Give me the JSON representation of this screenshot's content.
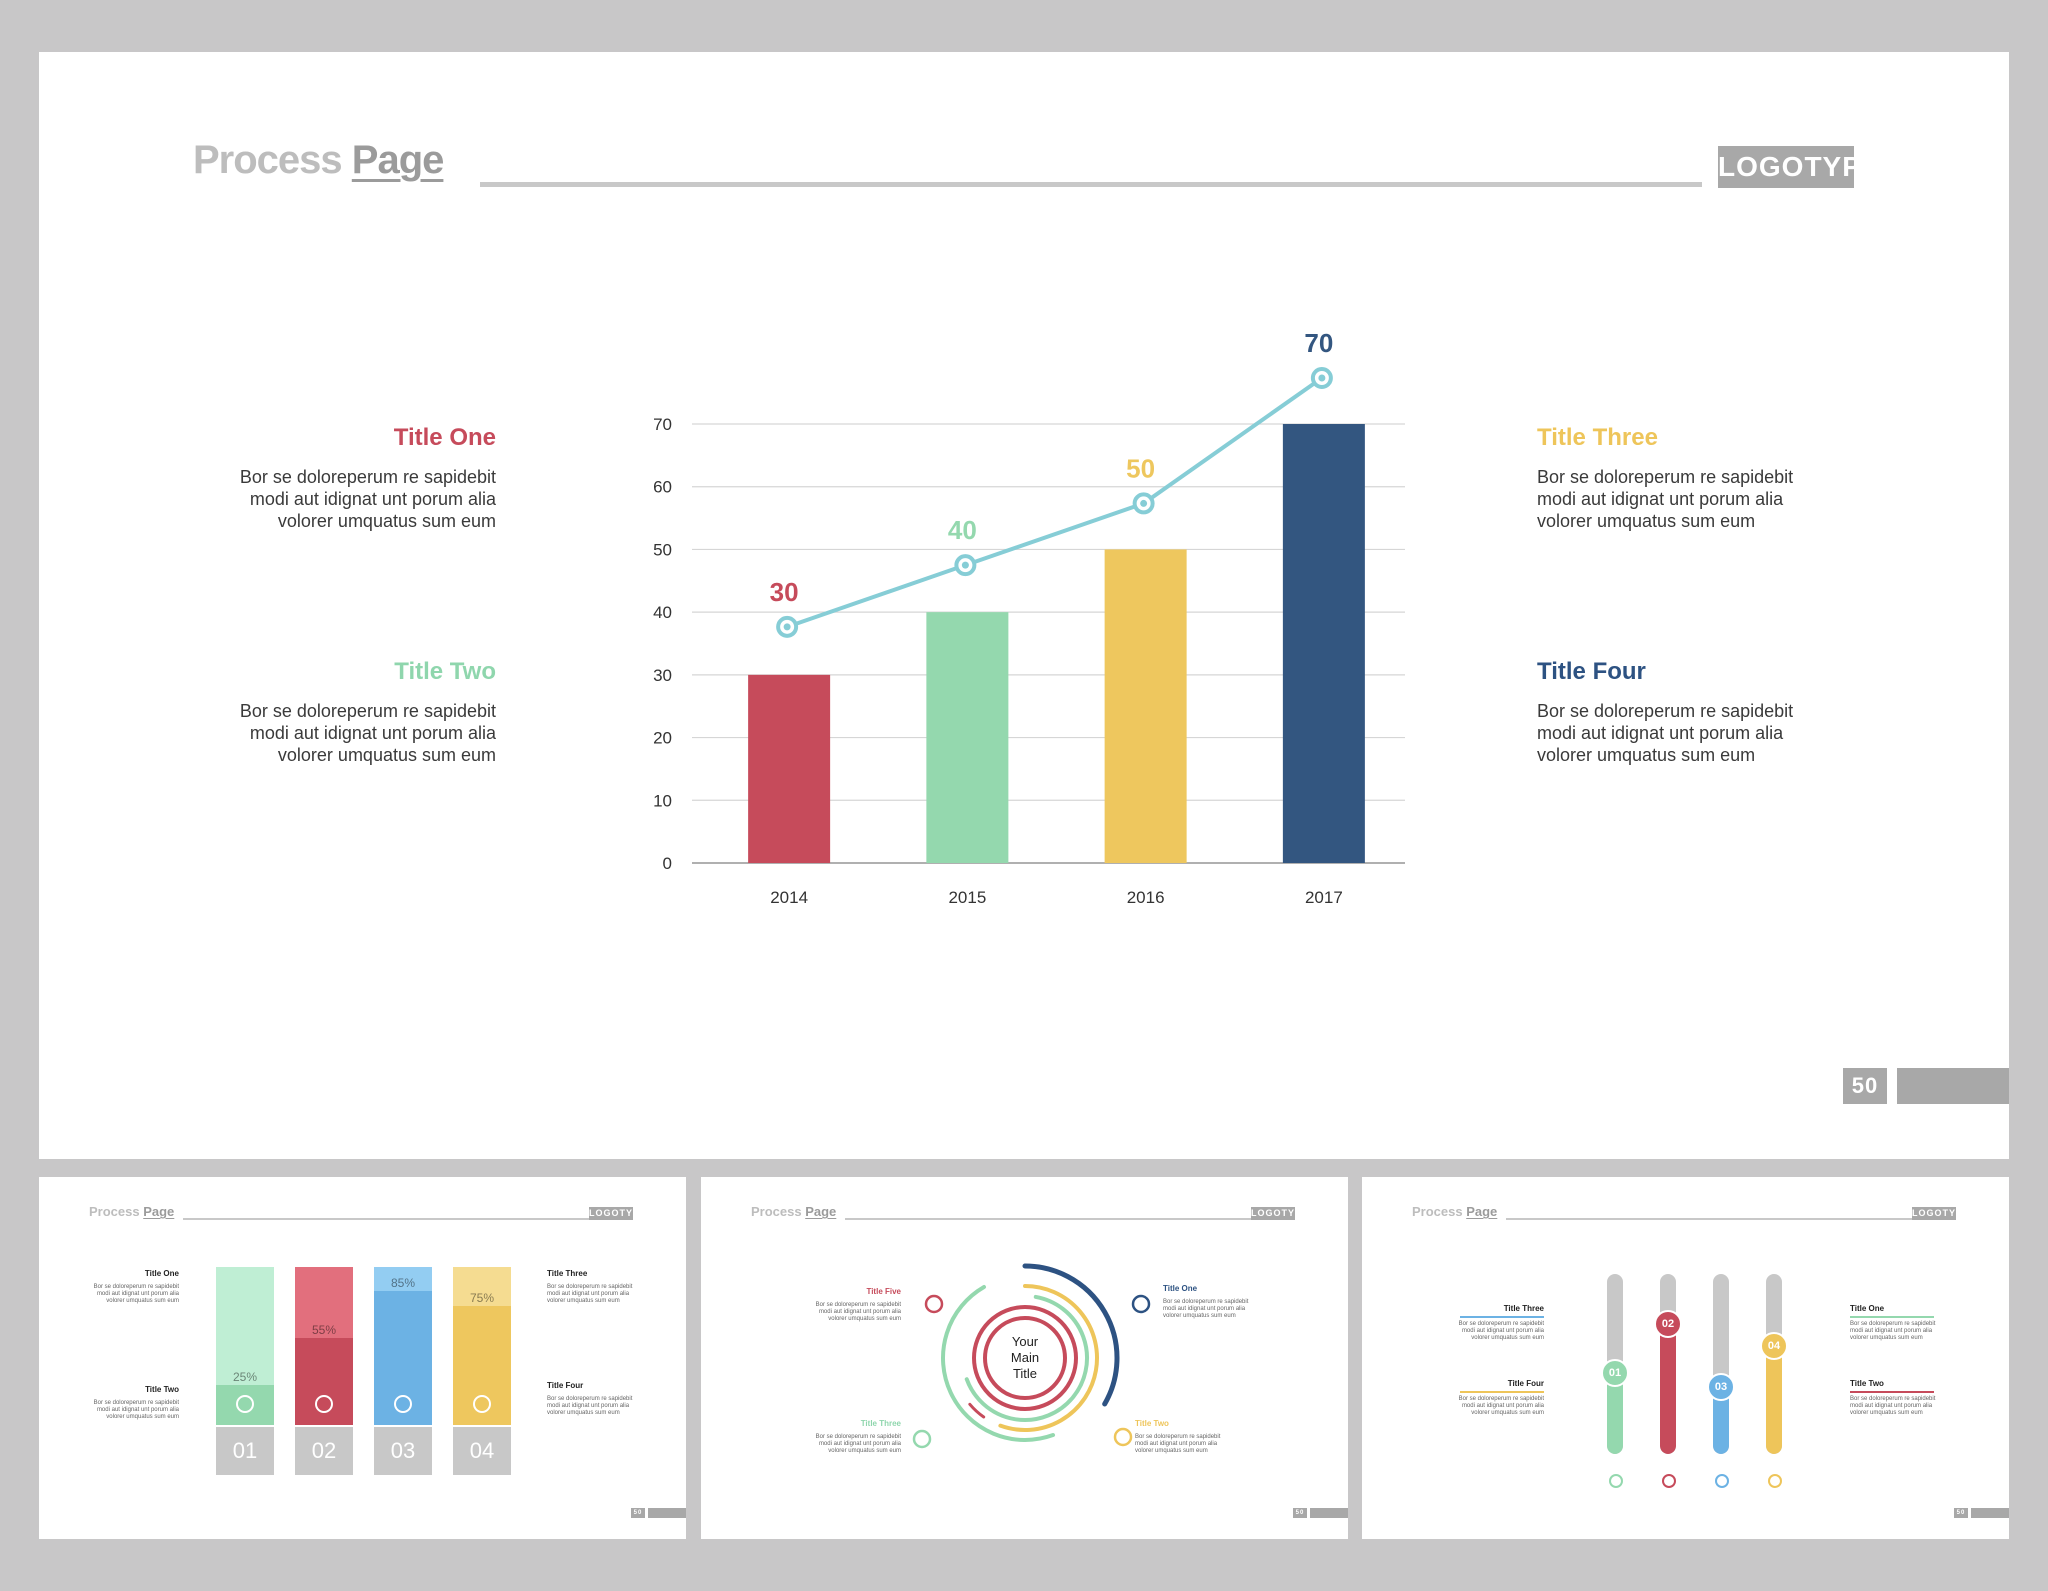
{
  "main_slide": {
    "header": {
      "title_light": "Process",
      "title_bold": "Page",
      "logo": "LOGOTYPE"
    },
    "page_number": "50",
    "blocks": [
      {
        "title": "Title One",
        "color": "#c64b5b",
        "lines": [
          "Bor se doloreperum re sapidebit",
          "modi aut idignat unt porum alia",
          "volorer umquatus sum eum"
        ]
      },
      {
        "title": "Title Two",
        "color": "#8fd6ad",
        "lines": [
          "Bor se doloreperum re sapidebit",
          "modi aut idignat unt porum alia",
          "volorer umquatus sum eum"
        ]
      },
      {
        "title": "Title Three",
        "color": "#eec55a",
        "lines": [
          "Bor se doloreperum re sapidebit",
          "modi aut idignat unt porum alia",
          "volorer umquatus sum eum"
        ]
      },
      {
        "title": "Title Four",
        "color": "#2d5282",
        "lines": [
          "Bor se doloreperum re sapidebit",
          "modi aut idignat unt porum alia",
          "volorer umquatus sum eum"
        ]
      }
    ]
  },
  "chart_data": {
    "type": "bar",
    "categories": [
      "2014",
      "2015",
      "2016",
      "2017"
    ],
    "values": [
      30,
      40,
      50,
      70
    ],
    "colors": [
      "#c64b5b",
      "#94d8ae",
      "#eec75e",
      "#335680"
    ],
    "data_labels": [
      "30",
      "40",
      "50",
      "70"
    ],
    "line_overlay_color": "#86cdd6",
    "y_ticks": [
      "0",
      "10",
      "20",
      "30",
      "40",
      "50",
      "60",
      "70"
    ],
    "ylim": [
      0,
      70
    ],
    "grid": true
  },
  "thumb1": {
    "header": {
      "title_light": "Process",
      "title_bold": "Page",
      "logo": "LOGOTYPE"
    },
    "page_number": "50",
    "left": [
      {
        "title": "Title One",
        "lines": [
          "Bor se doloreperum re sapidebit",
          "modi aut idignat unt porum alia",
          "volorer umquatus sum eum"
        ]
      },
      {
        "title": "Title Two",
        "lines": [
          "Bor se doloreperum re sapidebit",
          "modi aut idignat unt porum alia",
          "volorer umquatus sum eum"
        ]
      }
    ],
    "right": [
      {
        "title": "Title Three",
        "lines": [
          "Bor se doloreperum re sapidebit",
          "modi aut idignat unt porum alia",
          "volorer umquatus sum eum"
        ]
      },
      {
        "title": "Title Four",
        "lines": [
          "Bor se doloreperum re sapidebit",
          "modi aut idignat unt porum alia",
          "volorer umquatus sum eum"
        ]
      }
    ],
    "columns": [
      {
        "pct": "25%",
        "fill": 0.25,
        "num": "01",
        "light": "#bfeed4",
        "dark": "#94d8ae",
        "icon": "stopwatch-icon"
      },
      {
        "pct": "55%",
        "fill": 0.55,
        "num": "02",
        "light": "#e26f7d",
        "dark": "#c64b5b",
        "icon": "puzzle-icon"
      },
      {
        "pct": "85%",
        "fill": 0.85,
        "num": "03",
        "light": "#93cdf2",
        "dark": "#6cb2e4",
        "icon": "dollar-icon"
      },
      {
        "pct": "75%",
        "fill": 0.75,
        "num": "04",
        "light": "#f5dc91",
        "dark": "#eec75e",
        "icon": "chart-icon"
      }
    ]
  },
  "thumb2": {
    "header": {
      "title_light": "Process",
      "title_bold": "Page",
      "logo": "LOGOTYPE"
    },
    "page_number": "50",
    "center": [
      "Your",
      "Main",
      "Title"
    ],
    "items": [
      {
        "title": "Title  Five",
        "color": "#c64b5b",
        "lines": [
          "Bor se doloreperum re sapidebit",
          "modi aut idignat unt porum alia",
          "volorer umquatus sum eum"
        ],
        "icon": "chart-icon"
      },
      {
        "title": "Title One",
        "color": "#2d5282",
        "lines": [
          "Bor se doloreperum re sapidebit",
          "modi aut idignat unt porum alia",
          "volorer umquatus sum eum"
        ],
        "icon": "stopwatch-icon"
      },
      {
        "title": "Title Three",
        "color": "#8fd6ad",
        "lines": [
          "Bor se doloreperum re sapidebit",
          "modi aut idignat unt porum alia",
          "volorer umquatus sum eum"
        ],
        "icon": "lightbulb-icon"
      },
      {
        "title": "Title Two",
        "color": "#eec55a",
        "lines": [
          "Bor se doloreperum re sapidebit",
          "modi aut idignat unt porum alia",
          "volorer umquatus sum eum"
        ],
        "icon": "puzzle-icon"
      }
    ]
  },
  "thumb3": {
    "header": {
      "title_light": "Process",
      "title_bold": "Page",
      "logo": "LOGOTYPE"
    },
    "page_number": "50",
    "left": [
      {
        "title": "Title Three",
        "color": "#6cb2e4",
        "lines": [
          "Bor se doloreperum re sapidebit",
          "modi aut idignat unt porum alia",
          "volorer umquatus sum eum"
        ]
      },
      {
        "title": "Title Four",
        "color": "#eec55a",
        "lines": [
          "Bor se doloreperum re sapidebit",
          "modi aut idignat unt porum alia",
          "volorer umquatus sum eum"
        ]
      }
    ],
    "right": [
      {
        "title": "Title One",
        "color": "#94d8ae",
        "lines": [
          "Bor se doloreperum re sapidebit",
          "modi aut idignat unt porum alia",
          "volorer umquatus sum eum"
        ]
      },
      {
        "title": "Title Two",
        "color": "#c64b5b",
        "lines": [
          "Bor se doloreperum re sapidebit",
          "modi aut idignat unt porum alia",
          "volorer umquatus sum eum"
        ]
      }
    ],
    "sliders": [
      {
        "num": "01",
        "level": 0.45,
        "color": "#94d8ae",
        "icon": "stopwatch-icon"
      },
      {
        "num": "02",
        "level": 0.72,
        "color": "#c64b5b",
        "icon": "puzzle-icon"
      },
      {
        "num": "03",
        "level": 0.37,
        "color": "#6cb2e4",
        "icon": "chart-icon"
      },
      {
        "num": "04",
        "level": 0.6,
        "color": "#eec55a",
        "icon": "lightbulb-icon"
      }
    ]
  }
}
